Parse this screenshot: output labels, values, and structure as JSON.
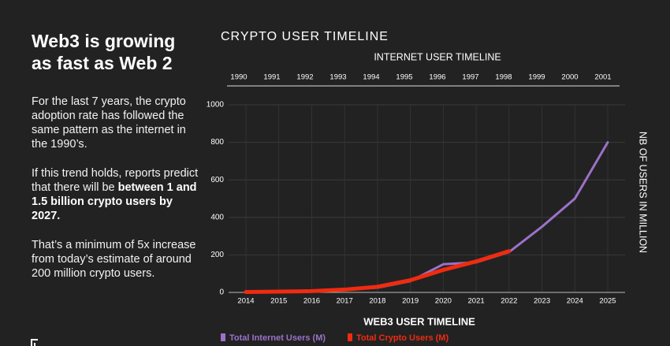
{
  "sidebar": {
    "heading": [
      "Web3 is growing",
      "as fast as Web 2"
    ],
    "paragraphs": [
      {
        "text": "For the last 7 years, the crypto adoption rate has followed the same pattern as the internet in the 1990’s."
      },
      {
        "text": "If this trend holds, reports predict that there will be ",
        "bold": "between 1 and 1.5 billion crypto users by 2027."
      },
      {
        "text": "That’s a minimum of 5x increase from today’s estimate of around 200 million crypto users."
      }
    ]
  },
  "chart_data": {
    "type": "line",
    "title": "CRYPTO USER TIMELINE",
    "top_axis": {
      "title": "INTERNET USER TIMELINE",
      "categories": [
        "1990",
        "1991",
        "1992",
        "1993",
        "1994",
        "1995",
        "1996",
        "1997",
        "1998",
        "1999",
        "2000",
        "2001"
      ]
    },
    "x_label": "WEB3 USER TIMELINE",
    "y_label": "NB OF USERS IN MILLION",
    "categories": [
      "2014",
      "2015",
      "2016",
      "2017",
      "2018",
      "2019",
      "2020",
      "2021",
      "2022",
      "2023",
      "2024",
      "2025"
    ],
    "series": [
      {
        "name": "Total Internet Users (M)",
        "color": "#9b72c8",
        "values": [
          1,
          3,
          7,
          15,
          25,
          60,
          150,
          160,
          215,
          350,
          500,
          800
        ]
      },
      {
        "name": "Total Crypto Users (M)",
        "color": "#f02b10",
        "values": [
          2,
          4,
          7,
          15,
          30,
          65,
          120,
          165,
          220,
          null,
          null,
          null
        ]
      }
    ],
    "ylim": [
      0,
      1000
    ],
    "yticks": [
      0,
      200,
      400,
      600,
      800,
      1000
    ],
    "grid": true
  }
}
